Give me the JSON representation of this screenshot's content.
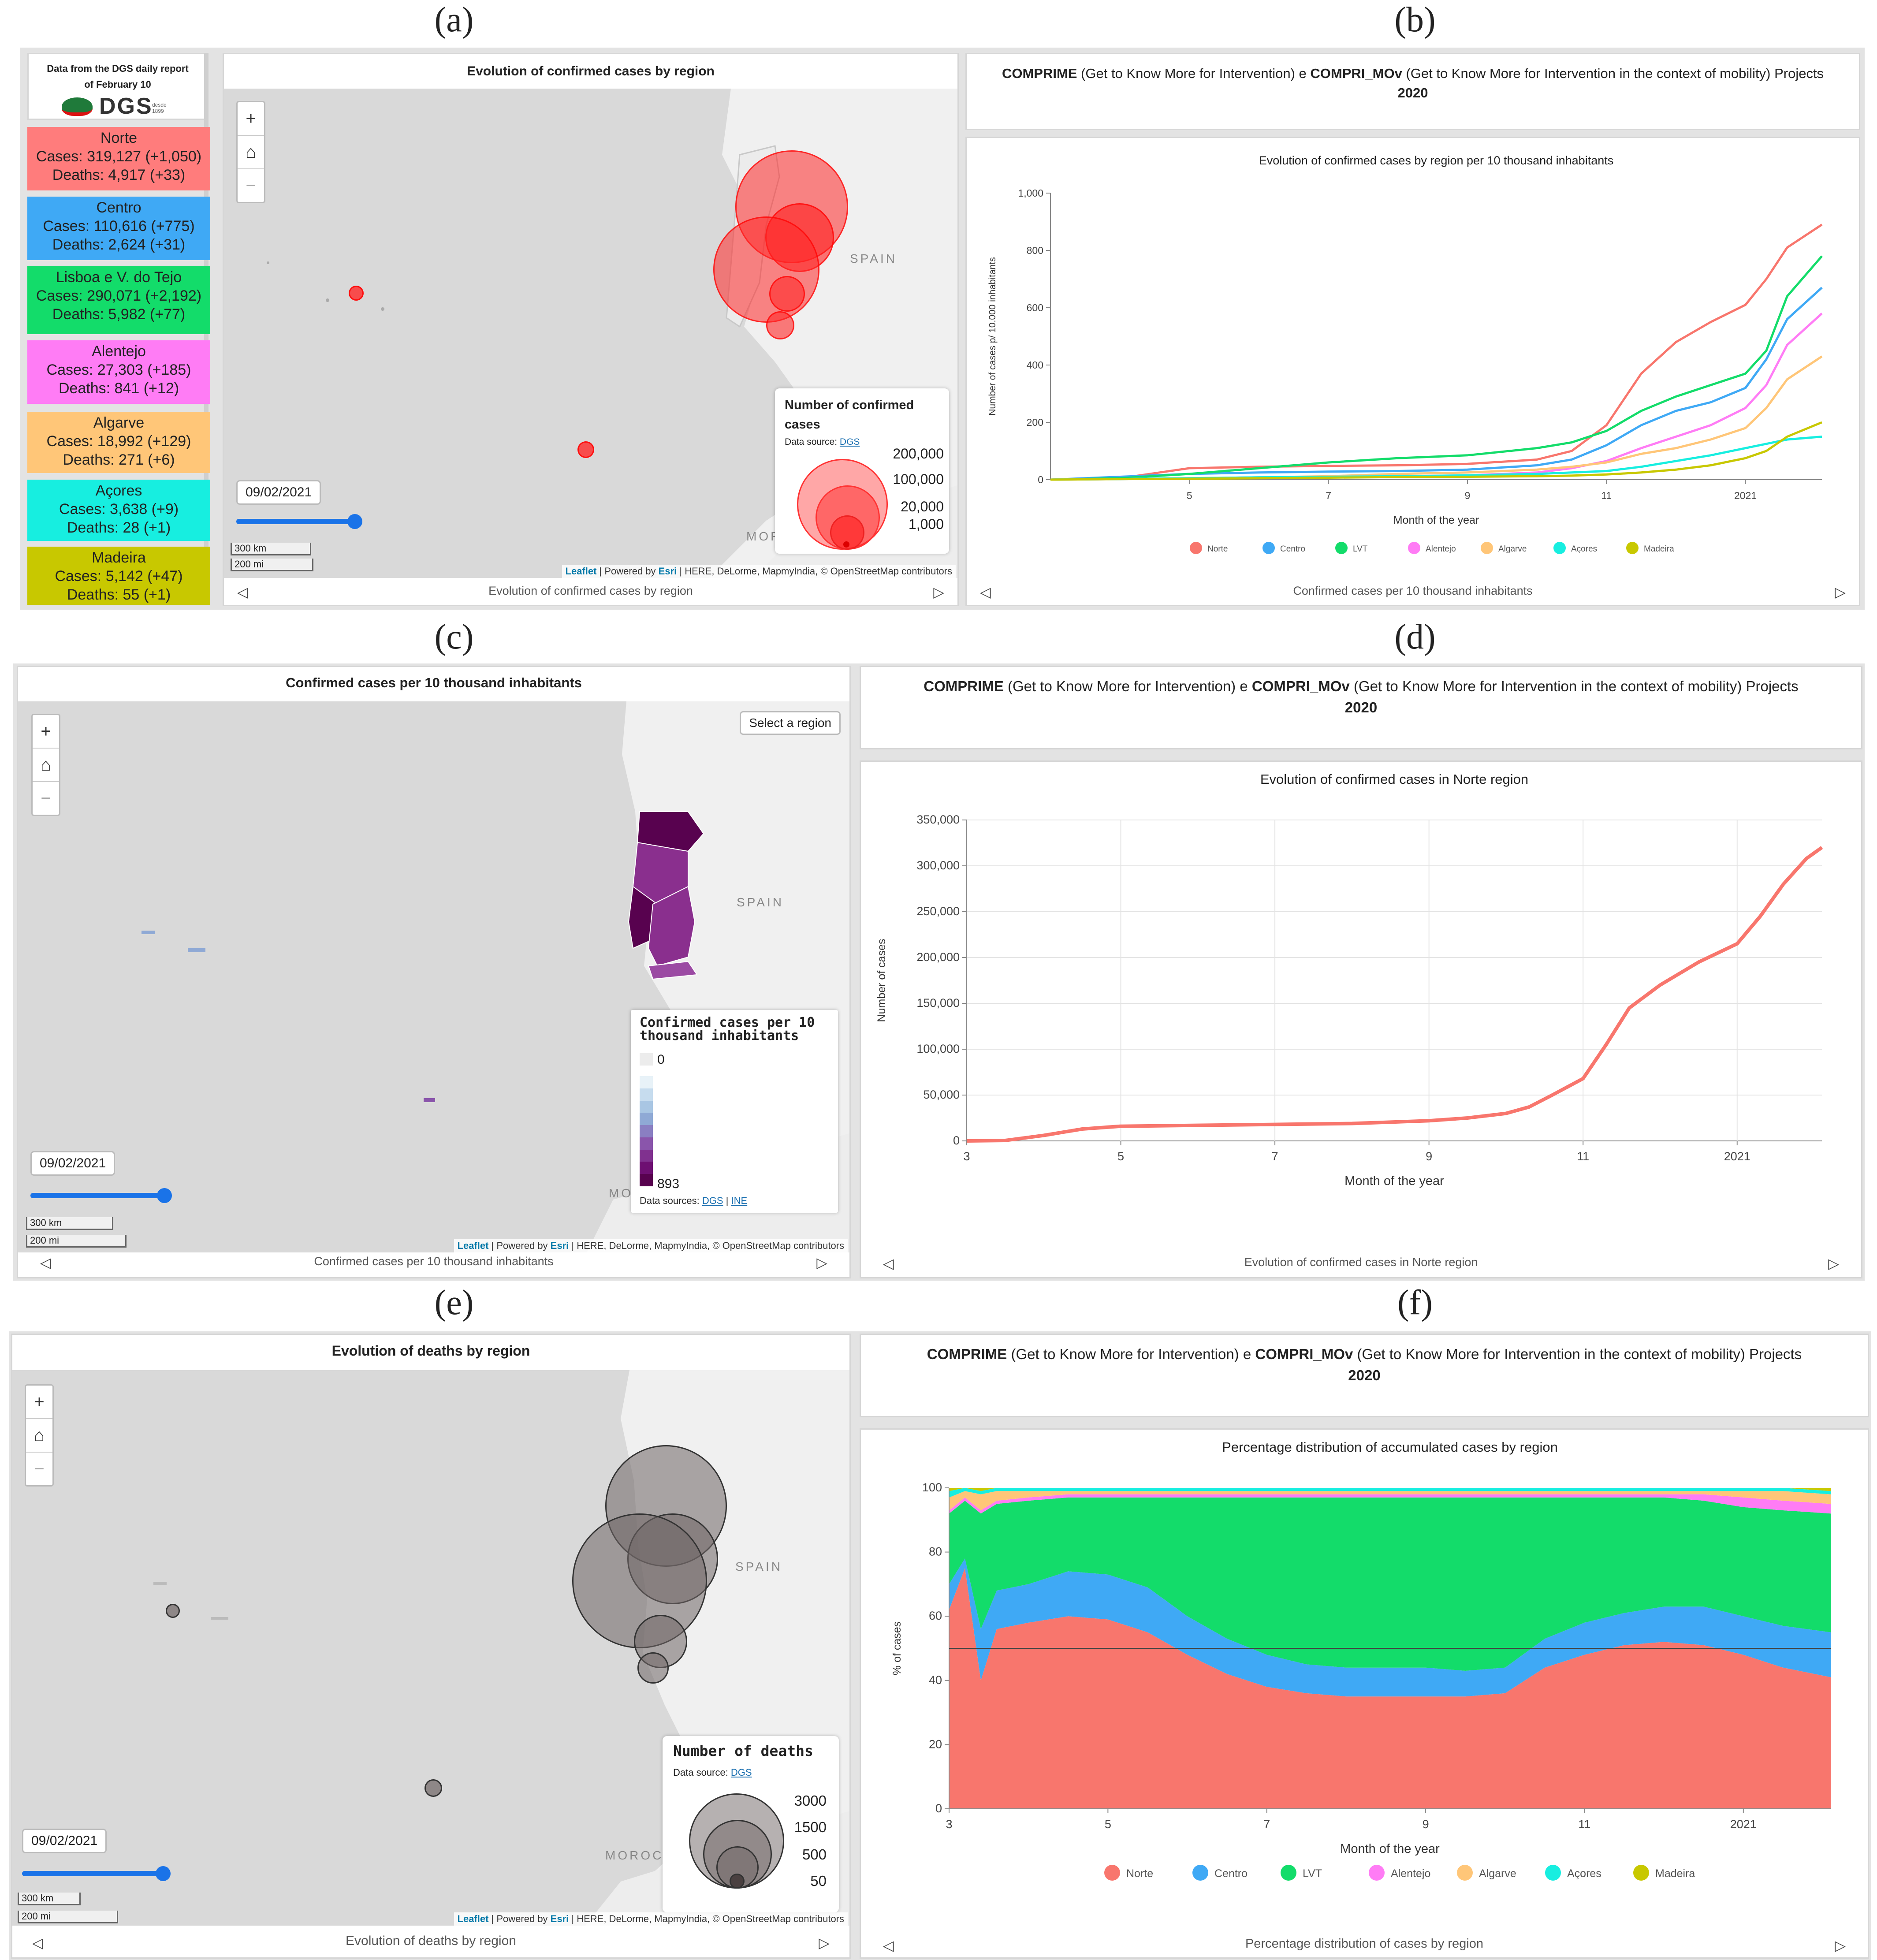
{
  "panel_labels": {
    "a": "(a)",
    "b": "(b)",
    "c": "(c)",
    "d": "(d)",
    "e": "(e)",
    "f": "(f)"
  },
  "dgs": {
    "header_line1": "Data from the DGS daily report",
    "header_line2": "of February 10",
    "logo_text": "DGS",
    "logo_sub": "desde 1899"
  },
  "regions": [
    {
      "name": "Norte",
      "cases": "Cases: 319,127 (+1,050)",
      "deaths": "Deaths: 4,917 (+33)",
      "color": "#ff7c7c"
    },
    {
      "name": "Centro",
      "cases": "Cases: 110,616 (+775)",
      "deaths": "Deaths: 2,624 (+31)",
      "color": "#3fa9f5"
    },
    {
      "name": "Lisboa e V. do Tejo",
      "cases": "Cases: 290,071 (+2,192)",
      "deaths": "Deaths: 5,982 (+77)",
      "color": "#13dc6a"
    },
    {
      "name": "Alentejo",
      "cases": "Cases: 27,303 (+185)",
      "deaths": "Deaths: 841 (+12)",
      "color": "#ff7cf5"
    },
    {
      "name": "Algarve",
      "cases": "Cases: 18,992 (+129)",
      "deaths": "Deaths: 271 (+6)",
      "color": "#ffc678"
    },
    {
      "name": "Açores",
      "cases": "Cases: 3,638 (+9)",
      "deaths": "Deaths: 28 (+1)",
      "color": "#17eee0"
    },
    {
      "name": "Madeira",
      "cases": "Cases: 5,142 (+47)",
      "deaths": "Deaths: 55 (+1)",
      "color": "#c8c800"
    }
  ],
  "map_common": {
    "date": "09/02/2021",
    "scale_km": "300 km",
    "scale_mi": "200 mi",
    "attrib_leaflet": "Leaflet",
    "attrib_mid": " | Powered by ",
    "attrib_esri": "Esri",
    "attrib_rest": " | HERE, DeLorme, MapmyIndia, © OpenStreetMap contributors",
    "spain": "SPAIN",
    "morocco_a": "MORO",
    "morocco_c": "MO",
    "morocco_e": "MOROCCO"
  },
  "panel_a": {
    "title": "Evolution of confirmed cases by region",
    "footer": "Evolution of confirmed cases by region",
    "legend_title": "Number of confirmed cases",
    "legend_source_label": "Data source: ",
    "legend_source_link": "DGS",
    "legend_values": [
      "200,000",
      "100,000",
      "20,000",
      "1,000"
    ]
  },
  "project_header": {
    "bold1": "COMPRIME",
    "text1": " (Get to Know More for Intervention) e ",
    "bold2": "COMPRI_MOv",
    "text2": " (Get to Know More for Intervention in the context of mobility) Projects",
    "year": "2020"
  },
  "panel_b": {
    "footer": "Confirmed cases per 10 thousand inhabitants"
  },
  "panel_c": {
    "title": "Confirmed cases per 10 thousand inhabitants",
    "footer": "Confirmed cases per 10 thousand inhabitants",
    "select_region": "Select a region",
    "legend_title": "Confirmed cases per 10 thousand inhabitants",
    "legend_min": "0",
    "legend_max": "893",
    "legend_source_label": "Data sources: ",
    "legend_source_link1": "DGS",
    "legend_sep": " | ",
    "legend_source_link2": "INE",
    "ramp": [
      "#e8f2f8",
      "#c6dcee",
      "#a9c6e3",
      "#8fa9d5",
      "#8a7fc2",
      "#8a55ab",
      "#80318f",
      "#6e0f72",
      "#58024f"
    ]
  },
  "panel_d": {
    "footer": "Evolution of confirmed cases in Norte region"
  },
  "panel_e": {
    "title": "Evolution of deaths by region",
    "footer": "Evolution of deaths by region",
    "legend_title": "Number of deaths",
    "legend_source_label": "Data source: ",
    "legend_source_link": "DGS",
    "legend_values": [
      "3000",
      "1500",
      "500",
      "50"
    ]
  },
  "panel_f": {
    "footer": "Percentage distribution of cases by region"
  },
  "chart_data": [
    {
      "type": "line",
      "title": "Evolution of confirmed cases by region per 10 thousand inhabitants",
      "xlabel": "Month of the year",
      "ylabel": "Number of cases p/ 10.000 inhabitants",
      "x_ticks": [
        "5",
        "7",
        "9",
        "11",
        "2021"
      ],
      "y_ticks": [
        "0",
        "200",
        "400",
        "600",
        "800",
        "1,000"
      ],
      "ylim": [
        0,
        1000
      ],
      "x": [
        3,
        4,
        5,
        6,
        7,
        8,
        9,
        10,
        10.5,
        11,
        11.5,
        12,
        12.5,
        13,
        13.3,
        13.6,
        14.1
      ],
      "series": [
        {
          "name": "Norte",
          "color": "#f8766d",
          "values": [
            0,
            5,
            40,
            45,
            48,
            50,
            55,
            70,
            100,
            190,
            370,
            480,
            550,
            610,
            700,
            810,
            890
          ]
        },
        {
          "name": "Centro",
          "color": "#3fa9f5",
          "values": [
            0,
            10,
            20,
            25,
            28,
            30,
            35,
            50,
            70,
            120,
            190,
            240,
            270,
            320,
            420,
            560,
            670
          ]
        },
        {
          "name": "LVT",
          "color": "#13dc6a",
          "values": [
            0,
            5,
            20,
            40,
            60,
            75,
            85,
            110,
            130,
            170,
            240,
            290,
            330,
            370,
            450,
            640,
            780
          ]
        },
        {
          "name": "Alentejo",
          "color": "#ff7cf5",
          "values": [
            0,
            2,
            5,
            8,
            10,
            12,
            15,
            25,
            40,
            65,
            110,
            150,
            190,
            250,
            330,
            470,
            580
          ]
        },
        {
          "name": "Algarve",
          "color": "#ffc678",
          "values": [
            0,
            2,
            5,
            8,
            12,
            20,
            25,
            35,
            45,
            60,
            90,
            110,
            140,
            180,
            250,
            350,
            430
          ]
        },
        {
          "name": "Açores",
          "color": "#17eee0",
          "values": [
            0,
            2,
            5,
            8,
            10,
            12,
            15,
            20,
            25,
            30,
            45,
            65,
            85,
            110,
            125,
            140,
            150
          ]
        },
        {
          "name": "Madeira",
          "color": "#c8c800",
          "values": [
            0,
            2,
            3,
            5,
            7,
            9,
            10,
            12,
            14,
            18,
            25,
            35,
            50,
            75,
            100,
            150,
            200
          ]
        }
      ],
      "legend": "bottom"
    },
    {
      "type": "line",
      "title": "Evolution of confirmed cases in Norte region",
      "xlabel": "Month of the year",
      "ylabel": "Number of cases",
      "x_ticks": [
        "3",
        "5",
        "7",
        "9",
        "11",
        "2021"
      ],
      "y_ticks": [
        "0",
        "50,000",
        "100,000",
        "150,000",
        "200,000",
        "250,000",
        "300,000",
        "350,000"
      ],
      "ylim": [
        0,
        350000
      ],
      "x": [
        3,
        3.5,
        4,
        4.5,
        5,
        6,
        7,
        8,
        9,
        9.5,
        10,
        10.3,
        10.6,
        11,
        11.3,
        11.6,
        12,
        12.5,
        13,
        13.3,
        13.6,
        13.9,
        14.1
      ],
      "series": [
        {
          "name": "Norte",
          "color": "#f8766d",
          "values": [
            0,
            500,
            6000,
            13000,
            16000,
            17000,
            18000,
            19000,
            22000,
            25000,
            30000,
            37000,
            50000,
            68000,
            105000,
            145000,
            170000,
            195000,
            215000,
            245000,
            280000,
            308000,
            320000
          ]
        }
      ],
      "grid": true
    },
    {
      "type": "area",
      "title": "Percentage distribution of accumulated cases by region",
      "xlabel": "Month of the year",
      "ylabel": "% of cases",
      "x_ticks": [
        "3",
        "5",
        "7",
        "9",
        "11",
        "2021"
      ],
      "y_ticks": [
        "0",
        "20",
        "40",
        "60",
        "80",
        "100"
      ],
      "ylim": [
        0,
        100
      ],
      "reference_line": 50,
      "stacked": true,
      "x": [
        3,
        3.2,
        3.4,
        3.6,
        4,
        4.5,
        5,
        5.5,
        6,
        6.5,
        7,
        7.5,
        8,
        8.5,
        9,
        9.5,
        10,
        10.5,
        11,
        11.5,
        12,
        12.5,
        13,
        13.5,
        14.1
      ],
      "series": [
        {
          "name": "Norte",
          "color": "#f8766d",
          "values": [
            62,
            75,
            40,
            56,
            58,
            60,
            59,
            55,
            48,
            42,
            38,
            36,
            35,
            35,
            35,
            35,
            36,
            44,
            48,
            51,
            52,
            51,
            48,
            44,
            41
          ]
        },
        {
          "name": "Centro",
          "color": "#3fa9f5",
          "values": [
            8,
            3,
            16,
            12,
            12,
            14,
            14,
            14,
            12,
            11,
            10,
            9,
            9,
            9,
            9,
            8,
            8,
            9,
            10,
            10,
            11,
            12,
            12,
            13,
            14
          ]
        },
        {
          "name": "LVT",
          "color": "#13dc6a",
          "values": [
            22,
            18,
            36,
            27,
            26,
            23,
            24,
            28,
            37,
            44,
            49,
            52,
            53,
            53,
            53,
            54,
            53,
            44,
            39,
            36,
            34,
            33,
            34,
            36,
            37
          ]
        },
        {
          "name": "Alentejo",
          "color": "#ff7cf5",
          "values": [
            1,
            1,
            1,
            1,
            1,
            1,
            1,
            1,
            1,
            1,
            1,
            1,
            1,
            1,
            1,
            1,
            1,
            1,
            1,
            1,
            1,
            2,
            3,
            3,
            3
          ]
        },
        {
          "name": "Algarve",
          "color": "#ffc678",
          "values": [
            4,
            2,
            5,
            3,
            2,
            1,
            1,
            1,
            1,
            1,
            1,
            1,
            1,
            1,
            1,
            1,
            1,
            1,
            1,
            1,
            1,
            1,
            2,
            3,
            3
          ]
        },
        {
          "name": "Açores",
          "color": "#17eee0",
          "values": [
            2,
            1,
            1,
            1,
            1,
            1,
            1,
            1,
            1,
            1,
            1,
            1,
            1,
            1,
            1,
            1,
            1,
            1,
            1,
            1,
            1,
            1,
            1,
            1,
            1
          ]
        },
        {
          "name": "Madeira",
          "color": "#c8c800",
          "values": [
            1,
            0,
            1,
            0,
            0,
            0,
            0,
            0,
            0,
            0,
            0,
            0,
            0,
            0,
            0,
            0,
            0,
            0,
            0,
            0,
            0,
            0,
            0,
            0,
            1
          ]
        }
      ],
      "legend": "bottom"
    }
  ]
}
